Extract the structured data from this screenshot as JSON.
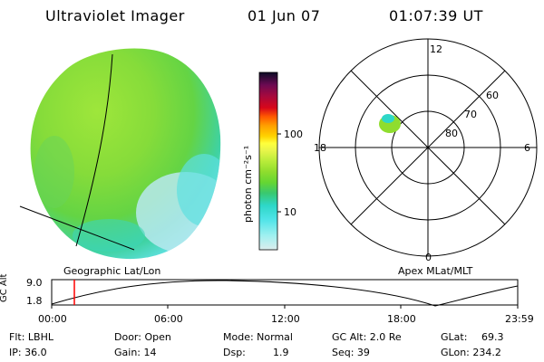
{
  "header": {
    "title": "Ultraviolet Imager",
    "date": "01 Jun 07",
    "time": "01:07:39 UT"
  },
  "colorbar": {
    "unit_label": "photon cm⁻²s⁻¹",
    "ticks": [
      "100",
      "10"
    ],
    "colors": [
      "#0b0b25",
      "#3a0a40",
      "#6b0a52",
      "#a3093f",
      "#d8071a",
      "#ff5a00",
      "#ff9f00",
      "#ffd200",
      "#ffff3c",
      "#e8f54a",
      "#b9ec3a",
      "#8fdd2e",
      "#65d632",
      "#39c86f",
      "#2ed7c8",
      "#50e4e8",
      "#9ff0f0",
      "#dceeee"
    ]
  },
  "geo_panel": {
    "label": "Geographic Lat/Lon"
  },
  "polar_panel": {
    "label": "Apex MLat/MLT",
    "mlt_labels": {
      "top": "12",
      "left": "18",
      "right": "6",
      "bottom": "0"
    },
    "lat_labels": [
      "60",
      "70",
      "80"
    ]
  },
  "timeline": {
    "y_axis_label": "GC Alt",
    "y_ticks": [
      "9.0",
      "1.8"
    ],
    "x_ticks": [
      "00:00",
      "06:00",
      "12:00",
      "18:00",
      "23:59"
    ],
    "current_time_fraction": 0.047
  },
  "info": {
    "flt": "Flt: LBHL",
    "ip": "IP: 36.0",
    "door": "Door: Open",
    "gain": "Gain: 14",
    "mode": "Mode: Normal",
    "dsp": "Dsp:",
    "dsp_val": "1.9",
    "gcalt": "GC Alt: 2.0 Re",
    "seq": "Seq: 39",
    "glat": "GLat:",
    "glat_val": "69.3",
    "glon": "GLon: 234.2"
  }
}
